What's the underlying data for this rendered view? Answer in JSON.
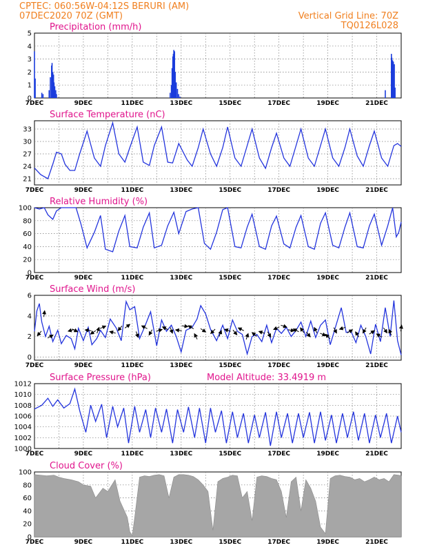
{
  "header": {
    "line1": "CPTEC:   060:56W-04:12S   BERURI (AM)",
    "line2": "07DEC2020 70Z (GMT)",
    "grid_note": "Vertical Grid Line: 70Z",
    "code": "TQ0126L028"
  },
  "colors": {
    "header": "#f07f1e",
    "title": "#e0148c",
    "line": "#2233dd",
    "bar": "#1a3cdc",
    "cloud": "#a6a6a6"
  },
  "chart_data": [
    {
      "id": "precip",
      "type": "bar",
      "title": "Precipitation (mm/h)",
      "x_day_range": [
        7.0,
        22.0
      ],
      "x_ticks": [
        "7DEC",
        "9DEC",
        "11DEC",
        "13DEC",
        "15DEC",
        "17DEC",
        "19DEC",
        "21DEC"
      ],
      "ylim": [
        0,
        5
      ],
      "yticks": [
        "0",
        "1",
        "2",
        "3",
        "4",
        "5"
      ],
      "x": [
        7.0,
        7.03,
        7.3,
        7.35,
        7.6,
        7.65,
        7.7,
        7.72,
        7.75,
        7.78,
        7.8,
        7.83,
        7.87,
        7.9,
        12.55,
        12.6,
        12.63,
        12.66,
        12.68,
        12.7,
        12.73,
        12.76,
        12.8,
        12.85,
        12.9,
        12.95,
        21.35,
        21.6,
        21.62,
        21.65,
        21.68,
        21.72,
        21.75
      ],
      "values": [
        3.6,
        1.5,
        0.4,
        0.3,
        0.6,
        1.6,
        2.5,
        2.7,
        2.0,
        1.8,
        1.2,
        0.9,
        0.6,
        0.3,
        0.4,
        1.0,
        2.3,
        3.2,
        3.4,
        3.7,
        3.6,
        2.0,
        1.2,
        0.7,
        0.3,
        0.1,
        0.6,
        3.4,
        3.1,
        2.9,
        2.8,
        2.6,
        0.8
      ]
    },
    {
      "id": "temp",
      "type": "line",
      "title": "Surface Temperature (nC)",
      "x_day_range": [
        7.0,
        22.0
      ],
      "x_ticks": [
        "7DEC",
        "9DEC",
        "11DEC",
        "13DEC",
        "15DEC",
        "17DEC",
        "19DEC",
        "21DEC"
      ],
      "ylim": [
        19.5,
        35.0
      ],
      "yticks": [
        "21",
        "24",
        "27",
        "30",
        "33"
      ],
      "ytick_values": [
        21,
        24,
        27,
        30,
        33
      ],
      "x": [
        7.0,
        7.25,
        7.55,
        7.75,
        7.9,
        8.1,
        8.25,
        8.45,
        8.65,
        8.85,
        9.15,
        9.45,
        9.7,
        9.9,
        10.2,
        10.45,
        10.7,
        10.9,
        11.2,
        11.45,
        11.7,
        11.9,
        12.2,
        12.45,
        12.65,
        12.9,
        13.25,
        13.45,
        13.7,
        13.9,
        14.2,
        14.45,
        14.7,
        14.9,
        15.2,
        15.45,
        15.7,
        15.9,
        16.2,
        16.45,
        16.7,
        16.9,
        17.2,
        17.45,
        17.7,
        17.9,
        18.2,
        18.45,
        18.7,
        18.9,
        19.2,
        19.45,
        19.7,
        19.9,
        20.2,
        20.45,
        20.7,
        20.9,
        21.2,
        21.45,
        21.7,
        21.85,
        22.0
      ],
      "values": [
        23.6,
        22.0,
        21.0,
        24.5,
        27.4,
        27.0,
        24.5,
        23.0,
        23.0,
        27.0,
        32.5,
        26.0,
        24.0,
        29.0,
        34.5,
        27.0,
        25.0,
        28.5,
        33.5,
        25.0,
        24.2,
        29.0,
        33.5,
        25.0,
        24.8,
        29.5,
        25.5,
        24.0,
        28.5,
        33.0,
        27.0,
        24.0,
        28.5,
        33.5,
        26.0,
        24.0,
        29.0,
        33.0,
        26.0,
        23.5,
        28.5,
        32.0,
        26.0,
        24.0,
        29.0,
        33.0,
        26.0,
        24.0,
        29.0,
        33.0,
        26.0,
        24.0,
        28.5,
        33.0,
        26.5,
        24.0,
        29.0,
        32.5,
        26.0,
        24.0,
        29.0,
        29.5,
        28.8
      ]
    },
    {
      "id": "rh",
      "type": "line",
      "title": "Relative Humidity (%)",
      "x_day_range": [
        7.0,
        22.0
      ],
      "x_ticks": [
        "7DEC",
        "9DEC",
        "11DEC",
        "13DEC",
        "15DEC",
        "17DEC",
        "19DEC",
        "21DEC"
      ],
      "ylim": [
        0,
        100
      ],
      "yticks": [
        "0",
        "20",
        "40",
        "60",
        "80",
        "100"
      ],
      "ytick_values": [
        0,
        20,
        40,
        60,
        80,
        100
      ],
      "x": [
        7.0,
        7.2,
        7.4,
        7.55,
        7.75,
        7.9,
        8.1,
        8.3,
        8.5,
        8.7,
        8.9,
        9.15,
        9.45,
        9.7,
        9.9,
        10.2,
        10.45,
        10.7,
        10.9,
        11.2,
        11.45,
        11.7,
        11.9,
        12.2,
        12.45,
        12.7,
        12.9,
        13.2,
        13.45,
        13.7,
        13.95,
        14.2,
        14.45,
        14.7,
        14.9,
        15.2,
        15.45,
        15.7,
        15.9,
        16.2,
        16.45,
        16.7,
        16.9,
        17.2,
        17.45,
        17.7,
        17.9,
        18.2,
        18.45,
        18.7,
        18.9,
        19.2,
        19.45,
        19.7,
        19.9,
        20.2,
        20.45,
        20.7,
        20.9,
        21.2,
        21.45,
        21.65,
        21.8,
        21.9,
        22.0
      ],
      "values": [
        100,
        98,
        100,
        89,
        82,
        95,
        100,
        100,
        100,
        100,
        75,
        38,
        62,
        88,
        36,
        32,
        64,
        88,
        40,
        38,
        70,
        92,
        38,
        42,
        72,
        93,
        60,
        94,
        98,
        100,
        45,
        36,
        62,
        97,
        100,
        40,
        38,
        70,
        90,
        40,
        36,
        72,
        87,
        44,
        38,
        70,
        88,
        40,
        36,
        76,
        92,
        42,
        38,
        70,
        92,
        40,
        38,
        72,
        90,
        42,
        72,
        100,
        55,
        62,
        78
      ]
    },
    {
      "id": "wind",
      "type": "line",
      "title": "Surface Wind (m/s)",
      "x_day_range": [
        7.0,
        22.0
      ],
      "x_ticks": [
        "7DEC",
        "9DEC",
        "11DEC",
        "13DEC",
        "15DEC",
        "17DEC",
        "19DEC",
        "21DEC"
      ],
      "ylim": [
        -0.3,
        6.0
      ],
      "yticks": [
        "0",
        "2",
        "4",
        "6"
      ],
      "ytick_values": [
        0,
        2,
        4,
        6
      ],
      "x": [
        7.0,
        7.1,
        7.2,
        7.3,
        7.45,
        7.6,
        7.75,
        7.95,
        8.1,
        8.3,
        8.5,
        8.65,
        8.8,
        9.0,
        9.2,
        9.35,
        9.55,
        9.7,
        9.9,
        10.1,
        10.35,
        10.55,
        10.75,
        10.9,
        11.1,
        11.3,
        11.5,
        11.75,
        12.0,
        12.2,
        12.4,
        12.6,
        12.8,
        13.0,
        13.2,
        13.45,
        13.65,
        13.8,
        14.0,
        14.2,
        14.45,
        14.7,
        14.9,
        15.1,
        15.3,
        15.5,
        15.7,
        15.9,
        16.1,
        16.3,
        16.5,
        16.7,
        16.9,
        17.1,
        17.3,
        17.5,
        17.7,
        17.9,
        18.1,
        18.3,
        18.5,
        18.7,
        18.9,
        19.1,
        19.3,
        19.55,
        19.75,
        19.95,
        20.15,
        20.35,
        20.55,
        20.75,
        20.95,
        21.15,
        21.35,
        21.55,
        21.7,
        21.85,
        22.0
      ],
      "values": [
        2.5,
        4.5,
        5.2,
        3.4,
        2.0,
        3.0,
        1.5,
        2.6,
        1.3,
        2.1,
        1.8,
        0.8,
        2.8,
        1.6,
        2.9,
        1.2,
        1.8,
        2.6,
        1.9,
        3.7,
        2.8,
        1.6,
        5.4,
        4.6,
        4.9,
        1.8,
        2.9,
        4.4,
        1.1,
        3.6,
        2.5,
        3.1,
        2.0,
        0.5,
        2.6,
        2.9,
        3.7,
        5.0,
        4.2,
        2.7,
        1.6,
        3.1,
        1.8,
        3.6,
        2.5,
        2.2,
        0.3,
        2.0,
        2.2,
        1.5,
        3.1,
        1.4,
        2.8,
        2.3,
        2.9,
        2.0,
        2.6,
        3.4,
        2.0,
        3.5,
        1.9,
        3.1,
        3.6,
        1.2,
        2.8,
        4.8,
        2.4,
        2.5,
        1.4,
        3.1,
        2.0,
        0.3,
        3.2,
        1.5,
        4.8,
        2.0,
        5.5,
        1.6,
        0.2
      ]
    },
    {
      "id": "pres",
      "type": "line",
      "title": "Surface Pressure (hPa)",
      "note": "Model Altitude: 33.4919 m",
      "x_day_range": [
        7.0,
        22.0
      ],
      "x_ticks": [
        "7DEC",
        "9DEC",
        "11DEC",
        "13DEC",
        "15DEC",
        "17DEC",
        "19DEC",
        "21DEC"
      ],
      "ylim": [
        1000,
        1012
      ],
      "yticks": [
        "1000",
        "1002",
        "1004",
        "1006",
        "1008",
        "1010",
        "1012"
      ],
      "ytick_values": [
        1000,
        1002,
        1004,
        1006,
        1008,
        1010,
        1012
      ],
      "x": [
        7.0,
        7.3,
        7.55,
        7.75,
        7.95,
        8.2,
        8.45,
        8.65,
        8.85,
        9.1,
        9.3,
        9.5,
        9.75,
        9.95,
        10.2,
        10.4,
        10.65,
        10.85,
        11.1,
        11.3,
        11.55,
        11.75,
        11.95,
        12.2,
        12.4,
        12.65,
        12.85,
        13.1,
        13.3,
        13.55,
        13.75,
        14.0,
        14.2,
        14.4,
        14.65,
        14.85,
        15.1,
        15.3,
        15.55,
        15.75,
        16.0,
        16.2,
        16.45,
        16.65,
        16.9,
        17.1,
        17.35,
        17.55,
        17.8,
        18.0,
        18.25,
        18.45,
        18.7,
        18.9,
        19.15,
        19.35,
        19.6,
        19.8,
        20.05,
        20.25,
        20.5,
        20.7,
        20.95,
        21.15,
        21.4,
        21.6,
        21.85,
        22.0
      ],
      "values": [
        1007.3,
        1008.0,
        1009.3,
        1007.8,
        1009.0,
        1007.5,
        1008.3,
        1011.0,
        1007.0,
        1003.0,
        1008.0,
        1005.0,
        1008.2,
        1002.0,
        1007.8,
        1004.0,
        1007.5,
        1001.0,
        1007.8,
        1003.0,
        1007.2,
        1002.0,
        1007.5,
        1003.0,
        1007.3,
        1001.0,
        1007.2,
        1003.0,
        1007.7,
        1002.0,
        1007.5,
        1001.0,
        1007.5,
        1003.0,
        1007.0,
        1001.0,
        1006.8,
        1002.0,
        1006.5,
        1001.0,
        1006.2,
        1002.0,
        1006.7,
        1000.5,
        1006.8,
        1002.0,
        1006.5,
        1001.0,
        1006.5,
        1002.0,
        1006.7,
        1001.0,
        1006.8,
        1001.5,
        1006.2,
        1001.0,
        1006.5,
        1002.0,
        1006.8,
        1001.5,
        1006.5,
        1001.0,
        1006.2,
        1002.0,
        1006.5,
        1001.0,
        1006.0,
        1003.0
      ]
    },
    {
      "id": "cloud",
      "type": "area",
      "title": "Cloud Cover (%)",
      "x_day_range": [
        7.0,
        22.0
      ],
      "x_ticks": [
        "7DEC",
        "9DEC",
        "11DEC",
        "13DEC",
        "15DEC",
        "17DEC",
        "19DEC",
        "21DEC"
      ],
      "ylim": [
        0,
        100
      ],
      "yticks": [
        "0",
        "20",
        "40",
        "60",
        "80",
        "100"
      ],
      "ytick_values": [
        0,
        20,
        40,
        60,
        80,
        100
      ],
      "x": [
        7.0,
        7.5,
        7.8,
        8.0,
        8.2,
        8.5,
        8.8,
        9.0,
        9.3,
        9.5,
        9.8,
        10.0,
        10.3,
        10.5,
        10.8,
        10.9,
        11.0,
        11.1,
        11.3,
        11.5,
        11.7,
        11.9,
        12.1,
        12.3,
        12.5,
        12.7,
        12.9,
        13.1,
        13.3,
        13.5,
        13.7,
        13.9,
        14.1,
        14.3,
        14.5,
        14.7,
        14.9,
        15.1,
        15.3,
        15.5,
        15.7,
        15.9,
        16.1,
        16.3,
        16.5,
        16.7,
        16.9,
        17.1,
        17.3,
        17.5,
        17.7,
        17.9,
        18.1,
        18.3,
        18.5,
        18.7,
        18.9,
        19.1,
        19.3,
        19.5,
        19.7,
        19.9,
        20.1,
        20.3,
        20.5,
        20.7,
        20.9,
        21.1,
        21.3,
        21.5,
        21.7,
        21.9,
        22.0
      ],
      "values": [
        96,
        94,
        95,
        92,
        90,
        88,
        85,
        80,
        78,
        60,
        75,
        70,
        88,
        55,
        30,
        8,
        2,
        30,
        92,
        94,
        93,
        95,
        96,
        94,
        60,
        92,
        96,
        96,
        95,
        93,
        88,
        80,
        70,
        10,
        85,
        90,
        92,
        95,
        94,
        60,
        70,
        25,
        92,
        94,
        93,
        90,
        88,
        70,
        30,
        85,
        92,
        40,
        88,
        75,
        55,
        15,
        5,
        90,
        94,
        95,
        93,
        92,
        88,
        90,
        85,
        88,
        92,
        88,
        90,
        85,
        96,
        95,
        94
      ]
    }
  ],
  "wind_arrows": {
    "x": [
      7.2,
      7.4,
      7.65,
      8.5,
      8.65,
      9.2,
      9.4,
      9.6,
      9.8,
      10.2,
      10.5,
      10.8,
      11.2,
      11.5,
      11.75,
      12.1,
      12.35,
      12.6,
      12.9,
      13.15,
      13.4,
      13.6,
      13.9,
      14.3,
      14.6,
      14.9,
      15.2,
      15.45,
      15.7,
      16.0,
      16.3,
      16.6,
      16.9,
      17.2,
      17.5,
      17.7,
      17.95,
      18.2,
      18.5,
      18.8,
      19.0,
      19.3,
      19.6,
      19.9,
      20.2,
      20.5,
      20.8,
      21.1,
      21.35,
      21.55,
      22.0
    ],
    "y": [
      2.3,
      4.2,
      2.0,
      2.6,
      2.6,
      2.6,
      2.4,
      2.6,
      2.9,
      2.4,
      2.8,
      3.0,
      2.2,
      2.9,
      2.4,
      2.6,
      2.8,
      2.6,
      2.6,
      3.0,
      2.9,
      2.0,
      2.6,
      2.5,
      2.3,
      2.6,
      2.4,
      2.7,
      2.0,
      2.2,
      2.4,
      2.2,
      2.8,
      3.0,
      2.6,
      2.6,
      2.6,
      2.2,
      2.6,
      2.2,
      2.0,
      2.6,
      2.8,
      2.5,
      2.2,
      2.6,
      2.4,
      2.1,
      2.6,
      2.4,
      2.8
    ],
    "u": [
      -0.6,
      0.1,
      0.7,
      -0.7,
      0.6,
      -0.7,
      -0.6,
      0.3,
      0.7,
      -0.7,
      -0.5,
      0.8,
      0.3,
      -0.6,
      -0.4,
      0.7,
      -0.6,
      0.3,
      -0.7,
      0.7,
      -0.5,
      -0.3,
      0.6,
      -0.5,
      0.3,
      -0.6,
      0.5,
      -0.6,
      0.2,
      -0.5,
      -0.6,
      0.4,
      -0.7,
      0.6,
      0.5,
      -0.6,
      -0.5,
      0.4,
      -0.3,
      0.7,
      -0.5,
      0.3,
      -0.6,
      0.5,
      -0.4,
      -0.3,
      0.6,
      -0.5,
      0.5,
      -0.2,
      0.1
    ],
    "v": [
      -0.7,
      0.8,
      0.4,
      -0.2,
      -0.3,
      0.1,
      -0.4,
      0.8,
      0.3,
      0.2,
      -0.6,
      0.6,
      -0.8,
      0.3,
      -0.7,
      0.2,
      0.3,
      -0.8,
      0.1,
      -0.1,
      0.3,
      0.6,
      -0.4,
      -0.5,
      0.8,
      0.2,
      -0.6,
      0.3,
      0.6,
      0.4,
      0.2,
      -0.7,
      -0.3,
      -0.2,
      -0.1,
      0.3,
      0.7,
      -0.5,
      0.6,
      -0.3,
      0.5,
      -0.6,
      -0.2,
      0.3,
      0.6,
      -0.5,
      0.4,
      0.3,
      -0.7,
      0.5,
      0.7
    ]
  }
}
